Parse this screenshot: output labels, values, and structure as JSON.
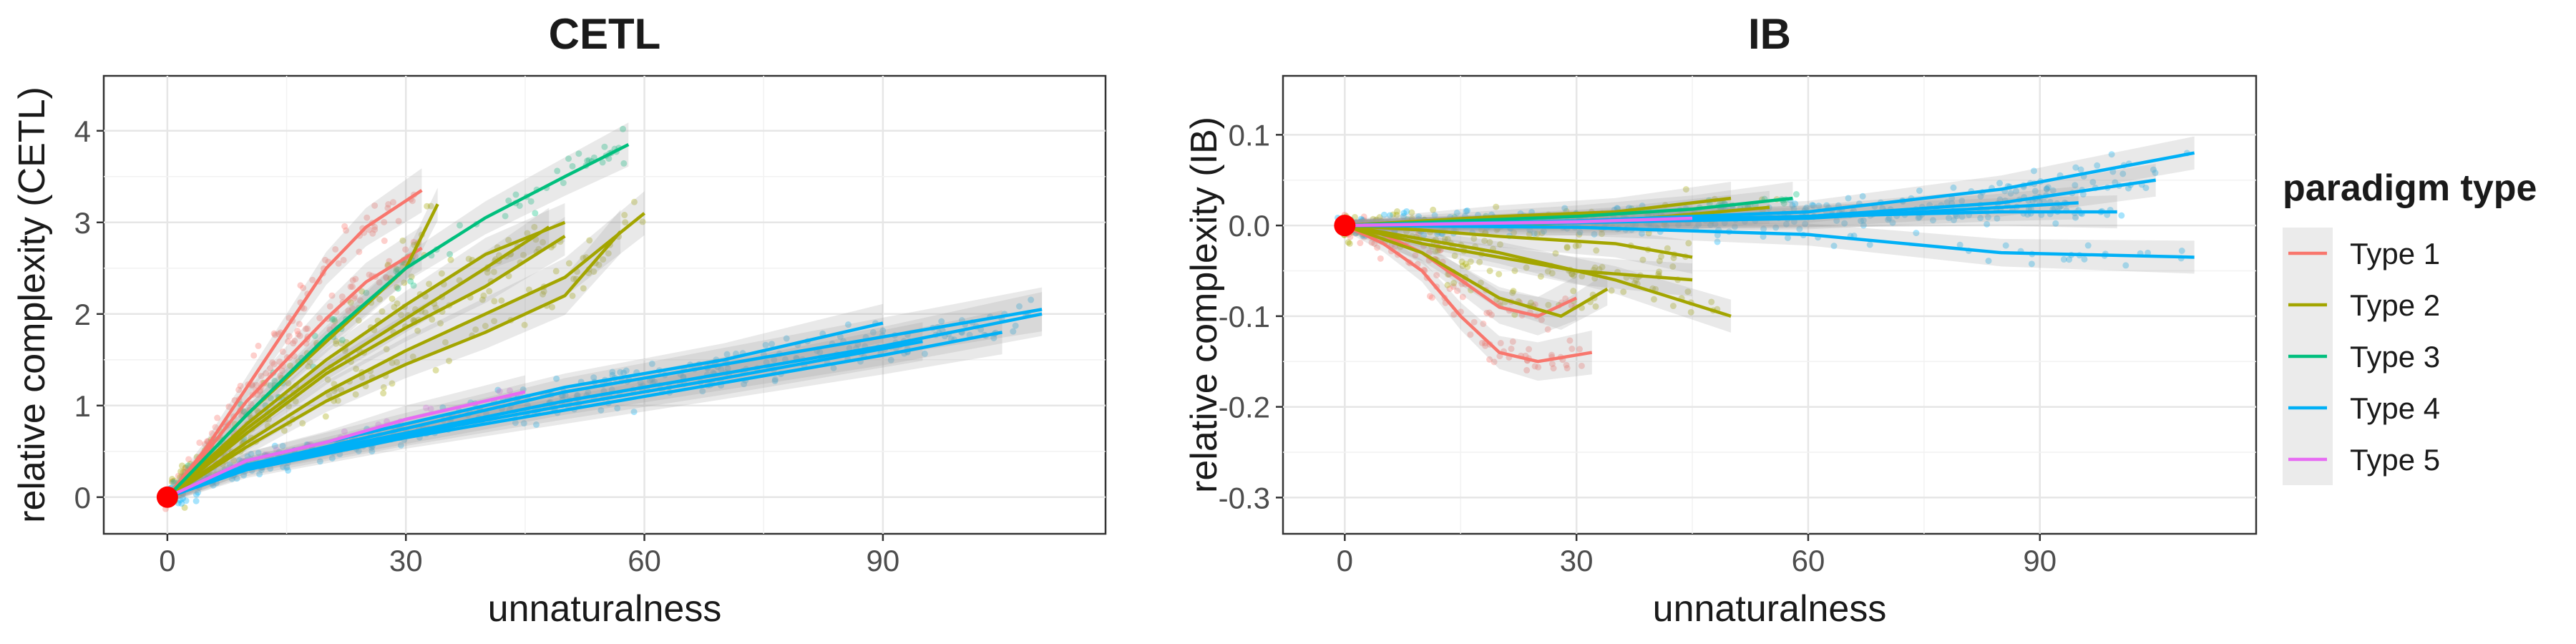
{
  "chart_data": [
    {
      "type": "scatter",
      "title": "CETL",
      "xlabel": "unnaturalness",
      "ylabel": "relative complexity (CETL)",
      "xlim": [
        -8,
        118
      ],
      "ylim": [
        -0.4,
        4.6
      ],
      "xticks": [
        0,
        30,
        60,
        90
      ],
      "yticks": [
        0,
        1,
        2,
        3,
        4
      ],
      "grid": true,
      "origin_point": {
        "x": 0,
        "y": 0,
        "color": "#ff0000"
      },
      "series": [
        {
          "name": "Type 1",
          "color": "#F8766D",
          "fits": [
            [
              [
                0,
                0
              ],
              [
                5,
                0.55
              ],
              [
                10,
                1.2
              ],
              [
                15,
                1.85
              ],
              [
                20,
                2.5
              ],
              [
                25,
                2.95
              ],
              [
                32,
                3.35
              ]
            ],
            [
              [
                0,
                0
              ],
              [
                5,
                0.5
              ],
              [
                10,
                1.05
              ],
              [
                15,
                1.5
              ],
              [
                20,
                1.95
              ],
              [
                25,
                2.35
              ],
              [
                32,
                2.72
              ]
            ]
          ],
          "points": {
            "x_range": [
              0,
              33
            ],
            "y_range": [
              0,
              4.3
            ],
            "count": 180
          }
        },
        {
          "name": "Type 2",
          "color": "#A3A500",
          "fits": [
            [
              [
                0,
                0
              ],
              [
                10,
                0.9
              ],
              [
                20,
                1.7
              ],
              [
                30,
                2.5
              ],
              [
                34,
                3.2
              ]
            ],
            [
              [
                0,
                0
              ],
              [
                10,
                0.8
              ],
              [
                20,
                1.5
              ],
              [
                30,
                2.1
              ],
              [
                40,
                2.65
              ],
              [
                50,
                3.0
              ]
            ],
            [
              [
                0,
                0
              ],
              [
                10,
                0.7
              ],
              [
                20,
                1.35
              ],
              [
                30,
                1.85
              ],
              [
                40,
                2.3
              ],
              [
                50,
                2.85
              ]
            ],
            [
              [
                0,
                0
              ],
              [
                10,
                0.6
              ],
              [
                20,
                1.15
              ],
              [
                30,
                1.6
              ],
              [
                40,
                2.0
              ],
              [
                50,
                2.4
              ],
              [
                60,
                3.1
              ]
            ],
            [
              [
                0,
                0
              ],
              [
                10,
                0.55
              ],
              [
                20,
                1.05
              ],
              [
                30,
                1.45
              ],
              [
                40,
                1.8
              ],
              [
                50,
                2.2
              ],
              [
                57,
                2.9
              ]
            ],
            [
              [
                0,
                0
              ],
              [
                10,
                0.75
              ],
              [
                20,
                1.4
              ],
              [
                30,
                1.95
              ],
              [
                40,
                2.5
              ],
              [
                48,
                2.95
              ]
            ]
          ],
          "points": {
            "x_range": [
              0,
              60
            ],
            "y_range": [
              0,
              4.2
            ],
            "count": 260
          }
        },
        {
          "name": "Type 3",
          "color": "#00BF7D",
          "fits": [
            [
              [
                0,
                0
              ],
              [
                10,
                0.9
              ],
              [
                20,
                1.75
              ],
              [
                30,
                2.5
              ],
              [
                40,
                3.05
              ],
              [
                50,
                3.5
              ],
              [
                58,
                3.85
              ]
            ]
          ],
          "points": {
            "x_range": [
              0,
              58
            ],
            "y_range": [
              0,
              4.1
            ],
            "count": 80
          }
        },
        {
          "name": "Type 4",
          "color": "#00B0F6",
          "fits": [
            [
              [
                0,
                0
              ],
              [
                10,
                0.35
              ],
              [
                30,
                0.75
              ],
              [
                50,
                1.15
              ],
              [
                70,
                1.45
              ],
              [
                90,
                1.75
              ],
              [
                110,
                2.05
              ]
            ],
            [
              [
                0,
                0
              ],
              [
                10,
                0.35
              ],
              [
                30,
                0.7
              ],
              [
                50,
                1.05
              ],
              [
                70,
                1.35
              ],
              [
                90,
                1.65
              ],
              [
                110,
                2.0
              ]
            ],
            [
              [
                0,
                0
              ],
              [
                10,
                0.3
              ],
              [
                30,
                0.65
              ],
              [
                50,
                0.95
              ],
              [
                70,
                1.25
              ],
              [
                90,
                1.55
              ],
              [
                105,
                1.8
              ]
            ],
            [
              [
                0,
                0
              ],
              [
                10,
                0.4
              ],
              [
                30,
                0.8
              ],
              [
                50,
                1.2
              ],
              [
                70,
                1.5
              ],
              [
                90,
                1.9
              ]
            ],
            [
              [
                0,
                0
              ],
              [
                10,
                0.32
              ],
              [
                30,
                0.68
              ],
              [
                50,
                1.0
              ],
              [
                70,
                1.3
              ],
              [
                95,
                1.7
              ]
            ]
          ],
          "points": {
            "x_range": [
              0,
              110
            ],
            "y_range": [
              -0.1,
              2.4
            ],
            "count": 420
          }
        },
        {
          "name": "Type 5",
          "color": "#E76BF3",
          "fits": [
            [
              [
                0,
                0
              ],
              [
                10,
                0.4
              ],
              [
                20,
                0.6
              ],
              [
                30,
                0.85
              ],
              [
                45,
                1.15
              ]
            ]
          ],
          "points": {
            "x_range": [
              0,
              45
            ],
            "y_range": [
              0,
              1.4
            ],
            "count": 30
          }
        }
      ]
    },
    {
      "type": "scatter",
      "title": "IB",
      "xlabel": "unnaturalness",
      "ylabel": "relative complexity (IB)",
      "xlim": [
        -8,
        118
      ],
      "ylim": [
        -0.34,
        0.165
      ],
      "xticks": [
        0,
        30,
        60,
        90
      ],
      "yticks": [
        -0.3,
        -0.2,
        -0.1,
        0.0,
        0.1
      ],
      "ytick_labels": [
        "-0.3",
        "-0.2",
        "-0.1",
        "0.0",
        "0.1"
      ],
      "grid": true,
      "origin_point": {
        "x": 0,
        "y": 0,
        "color": "#ff0000"
      },
      "series": [
        {
          "name": "Type 1",
          "color": "#F8766D",
          "fits": [
            [
              [
                0,
                0
              ],
              [
                5,
                -0.02
              ],
              [
                10,
                -0.05
              ],
              [
                15,
                -0.1
              ],
              [
                20,
                -0.14
              ],
              [
                25,
                -0.15
              ],
              [
                32,
                -0.14
              ]
            ],
            [
              [
                0,
                0
              ],
              [
                5,
                -0.01
              ],
              [
                10,
                -0.03
              ],
              [
                15,
                -0.06
              ],
              [
                20,
                -0.09
              ],
              [
                25,
                -0.1
              ],
              [
                30,
                -0.08
              ]
            ]
          ],
          "points": {
            "x_range": [
              0,
              33
            ],
            "y_range": [
              -0.3,
              0.05
            ],
            "count": 120
          }
        },
        {
          "name": "Type 2",
          "color": "#A3A500",
          "fits": [
            [
              [
                0,
                0
              ],
              [
                10,
                -0.03
              ],
              [
                20,
                -0.08
              ],
              [
                28,
                -0.1
              ],
              [
                34,
                -0.07
              ]
            ],
            [
              [
                0,
                0
              ],
              [
                10,
                -0.02
              ],
              [
                20,
                -0.035
              ],
              [
                30,
                -0.05
              ],
              [
                45,
                -0.06
              ]
            ],
            [
              [
                0,
                0
              ],
              [
                10,
                -0.015
              ],
              [
                20,
                -0.03
              ],
              [
                35,
                -0.06
              ],
              [
                50,
                -0.1
              ]
            ],
            [
              [
                0,
                0
              ],
              [
                10,
                0.005
              ],
              [
                20,
                0.01
              ],
              [
                35,
                0.015
              ],
              [
                50,
                0.03
              ]
            ],
            [
              [
                0,
                0
              ],
              [
                10,
                0.0
              ],
              [
                20,
                0.0
              ],
              [
                35,
                0.005
              ],
              [
                55,
                0.02
              ]
            ],
            [
              [
                0,
                0
              ],
              [
                10,
                -0.005
              ],
              [
                20,
                -0.012
              ],
              [
                35,
                -0.02
              ],
              [
                45,
                -0.035
              ]
            ]
          ],
          "points": {
            "x_range": [
              0,
              60
            ],
            "y_range": [
              -0.2,
              0.13
            ],
            "count": 220
          }
        },
        {
          "name": "Type 3",
          "color": "#00BF7D",
          "fits": [
            [
              [
                0,
                0
              ],
              [
                15,
                0.005
              ],
              [
                30,
                0.01
              ],
              [
                45,
                0.018
              ],
              [
                58,
                0.03
              ]
            ]
          ],
          "points": {
            "x_range": [
              0,
              58
            ],
            "y_range": [
              -0.05,
              0.08
            ],
            "count": 60
          }
        },
        {
          "name": "Type 4",
          "color": "#00B0F6",
          "fits": [
            [
              [
                0,
                0
              ],
              [
                30,
                0.005
              ],
              [
                60,
                0.015
              ],
              [
                85,
                0.04
              ],
              [
                110,
                0.08
              ]
            ],
            [
              [
                0,
                0
              ],
              [
                30,
                0.005
              ],
              [
                60,
                0.01
              ],
              [
                85,
                0.025
              ],
              [
                105,
                0.05
              ]
            ],
            [
              [
                0,
                0
              ],
              [
                30,
                0.005
              ],
              [
                60,
                0.01
              ],
              [
                85,
                0.015
              ],
              [
                100,
                0.015
              ]
            ],
            [
              [
                0,
                0
              ],
              [
                30,
                -0.002
              ],
              [
                60,
                -0.01
              ],
              [
                85,
                -0.03
              ],
              [
                110,
                -0.035
              ]
            ],
            [
              [
                0,
                0
              ],
              [
                30,
                0.003
              ],
              [
                60,
                0.008
              ],
              [
                85,
                0.02
              ],
              [
                95,
                0.025
              ]
            ]
          ],
          "points": {
            "x_range": [
              0,
              110
            ],
            "y_range": [
              -0.14,
              0.14
            ],
            "count": 400
          }
        },
        {
          "name": "Type 5",
          "color": "#E76BF3",
          "fits": [
            [
              [
                0,
                0
              ],
              [
                15,
                0.002
              ],
              [
                30,
                0.004
              ],
              [
                45,
                0.008
              ]
            ]
          ],
          "points": {
            "x_range": [
              0,
              45
            ],
            "y_range": [
              -0.02,
              0.03
            ],
            "count": 30
          }
        }
      ]
    }
  ],
  "legend": {
    "title": "paradigm type",
    "items": [
      {
        "label": "Type 1",
        "color": "#F8766D"
      },
      {
        "label": "Type 2",
        "color": "#A3A500"
      },
      {
        "label": "Type 3",
        "color": "#00BF7D"
      },
      {
        "label": "Type 4",
        "color": "#00B0F6"
      },
      {
        "label": "Type 5",
        "color": "#E76BF3"
      }
    ]
  }
}
